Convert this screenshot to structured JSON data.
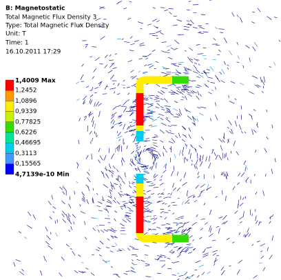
{
  "header": {
    "title": "B: Magnetostatic",
    "lines": [
      "Total Magnetic Flux Density 3",
      "Type: Total Magnetic Flux Density",
      "Unit: T",
      "Time: 1",
      "16.10.2011 17:29"
    ]
  },
  "legend": {
    "colors": [
      "#ff0000",
      "#ff9900",
      "#ffee00",
      "#c8f000",
      "#33dd00",
      "#00e699",
      "#00ccee",
      "#4499ff",
      "#0000ff"
    ],
    "labels": [
      "1,4009 Max",
      "1,2452",
      "1,0896",
      "0,9339",
      "0,77825",
      "0,6226",
      "0,46695",
      "0,3113",
      "0,15565",
      "4,7139e-10 Min"
    ]
  }
}
